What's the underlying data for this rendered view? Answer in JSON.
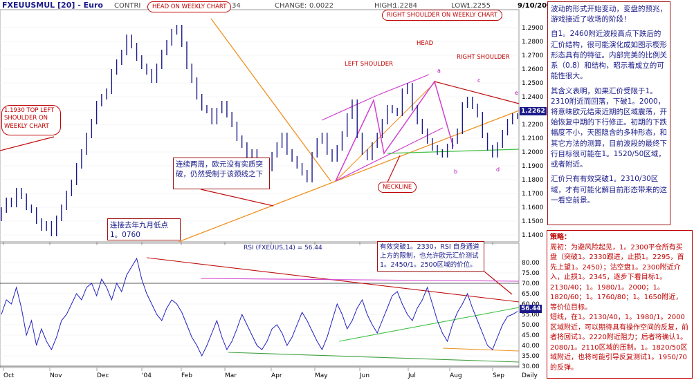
{
  "header": {
    "symbol": "FXEUUSMUL [20] - Euro",
    "contri": "CONTRI",
    "trunc_val": "34",
    "change_label": "CHANGE:",
    "change_value": "0.0022",
    "high_label": "HIGH:",
    "high_value": "1.2284",
    "low_label": "LOW:",
    "low_value": "1.2255",
    "date": "9/10/2004"
  },
  "labels": {
    "head_weekly": "HEAD ON WEEKLY CHART",
    "right_shoulder_weekly": "RIGHT SHOULDER ON WEEKLY CHART",
    "head": "HEAD",
    "left_shoulder": "LEFT SHOULDER",
    "right_shoulder": "RIGHT SHOULDER",
    "neckline": "NECKLINE",
    "top_left_shoulder": "1.1930  TOP LEFT SHOULDER ON WEEKLY CHART",
    "rsi_title": "RSI (FXEUUS,14) = 56.44",
    "current_price": "1.2262",
    "current_rsi": "56.44",
    "daily": "Daily"
  },
  "points": {
    "a": "a",
    "b": "b",
    "c": "c",
    "d": "d",
    "e": "e"
  },
  "annotations": {
    "two_weeks": "连续两周，欧元没有实质突破，仍然受制于该颈线之下",
    "sept_low": "连接去年九月低点1。0760",
    "rsi_note": "有效突破1。2330，RSI 自身通道上方的限制，也允许欧元汇价测试1。2450/1。2500区域的价位。"
  },
  "panel_paragraphs": [
    "波动的形式开始变动，变盘的预兆，游戏接近了收场的阶段！",
    "自1。2460附近波段高点下跌后的汇价结构，很可能演化成如图示楔形形态具有的特征。内部完美的比例关系（0.8）和结构，昭示着成立的可能性很大。",
    "其含义表明，如果汇价受限于1。2310附近而回落，下破1。2000，将意味欧元结束近期的区域震荡，开始恢复中期的下行修正。初期的下跌幅度不小，天图隐含的多种形态，和其它方法的测算，目前波段的最终下行目标很可能在1。1520/50区域，或者附近。",
    "汇价只有有效突破1。2310/30区域，才有可能化解目前形态带来的这一看空前景。"
  ],
  "strategy_paragraphs": [
    "策略：",
    "周初：为避风险起见，1。2300平仓所有买盘（突破1。2330跟进，止损1。2295，首先上望1。2450）；沽空盘1。2300附近介入，止损1。2345，逐步下看目标1。2130/40；1。1980/1。2000；1。1820/60；1。1760/80；1。1650附近，等价位目标。",
    "短线，在1。2130/40，1。1980/1。2000区域附近，可以期待具有操作空间的反复，前者将回试1。2220附近阻力；后者将确认1。2080/1。2110区域的压制。1。1820/50区域附近，也将可能引导反复测试1。1950/70的反弹。"
  ],
  "chart_data": [
    {
      "type": "line",
      "title": "FXEUUSMUL [20] - Euro",
      "x_ticks": [
        "Oct",
        "Nov",
        "Dec",
        "'04",
        "Feb",
        "Mar",
        "Apr",
        "May",
        "Jun",
        "Jul",
        "Aug",
        "Sep",
        "Daily"
      ],
      "ylim": [
        1.14,
        1.3
      ],
      "y_ticks": [
        1.14,
        1.15,
        1.16,
        1.17,
        1.18,
        1.19,
        1.2,
        1.21,
        1.22,
        1.23,
        1.24,
        1.25,
        1.26,
        1.27,
        1.28,
        1.29
      ],
      "series": [
        {
          "values": [
            1.152,
            1.158,
            1.165,
            1.162,
            1.172,
            1.168,
            1.16,
            1.158,
            1.15,
            1.145,
            1.148,
            1.141,
            1.152,
            1.16,
            1.17,
            1.178,
            1.19,
            1.2,
            1.212,
            1.222,
            1.235,
            1.24,
            1.244,
            1.258,
            1.265,
            1.272,
            1.283,
            1.277,
            1.268,
            1.262,
            1.258,
            1.252,
            1.262,
            1.272,
            1.279,
            1.287,
            1.29,
            1.278,
            1.262,
            1.252,
            1.24,
            1.232,
            1.23,
            1.222,
            1.23,
            1.235,
            1.227,
            1.22,
            1.21,
            1.205,
            1.198,
            1.2,
            1.19,
            1.182,
            1.188,
            1.198,
            1.205,
            1.212,
            1.2,
            1.195,
            1.19,
            1.185,
            1.18,
            1.198,
            1.208,
            1.212,
            1.2,
            1.195,
            1.203,
            1.213,
            1.226,
            1.236,
            1.212,
            1.2,
            1.196,
            1.205,
            1.212,
            1.222,
            1.232,
            1.23,
            1.228,
            1.244,
            1.248,
            1.232,
            1.222,
            1.215,
            1.208,
            1.203,
            1.2,
            1.198,
            1.204,
            1.208,
            1.215,
            1.234,
            1.238,
            1.233,
            1.227,
            1.212,
            1.203,
            1.198,
            1.205,
            1.214,
            1.222,
            1.226
          ]
        }
      ]
    },
    {
      "type": "line",
      "title": "RSI (FXEUUS,14) = 56.44",
      "x_ticks": [
        "Oct",
        "Nov",
        "Dec",
        "'04",
        "Feb",
        "Mar",
        "Apr",
        "May",
        "Jun",
        "Jul",
        "Aug",
        "Sep",
        "Daily"
      ],
      "ylim": [
        30,
        85
      ],
      "y_ticks": [
        30.0,
        35.0,
        40.0,
        45.0,
        50.0,
        55.0,
        60.0,
        65.0,
        70.0,
        75.0,
        80.0
      ],
      "series": [
        {
          "values": [
            55,
            62,
            60,
            68,
            58,
            45,
            52,
            40,
            48,
            42,
            38,
            44,
            52,
            55,
            60,
            65,
            62,
            68,
            70,
            64,
            72,
            68,
            62,
            70,
            66,
            74,
            78,
            82,
            72,
            65,
            60,
            55,
            52,
            58,
            62,
            60,
            56,
            50,
            44,
            40,
            35,
            40,
            46,
            52,
            44,
            38,
            42,
            48,
            55,
            50,
            45,
            40,
            38,
            42,
            48,
            50,
            46,
            40,
            44,
            50,
            56,
            52,
            47,
            42,
            38,
            44,
            52,
            60,
            55,
            48,
            52,
            58,
            62,
            55,
            50,
            46,
            52,
            58,
            64,
            66,
            60,
            55,
            52,
            58,
            62,
            68,
            60,
            52,
            46,
            42,
            50,
            56,
            60,
            65,
            58,
            52,
            46,
            40,
            38,
            44,
            50,
            54,
            55,
            56.44
          ]
        }
      ]
    }
  ]
}
